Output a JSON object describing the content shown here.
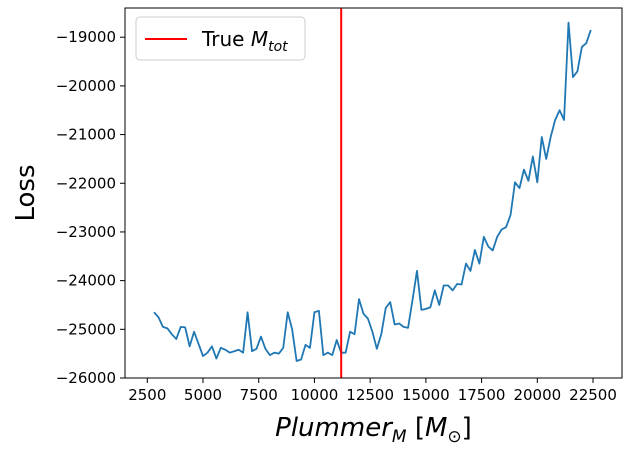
{
  "chart_data": {
    "type": "line",
    "title": "",
    "xlabel": {
      "main": "Plummer",
      "sub": "M",
      "unit_open": " [",
      "unit_var": "M",
      "unit_sub": "⊙",
      "unit_close": "]"
    },
    "ylabel": "Loss",
    "xlim": [
      1500,
      23800
    ],
    "ylim": [
      -26000,
      -18400
    ],
    "xticks": [
      2500,
      5000,
      7500,
      10000,
      12500,
      15000,
      17500,
      20000,
      22500
    ],
    "xtick_labels": [
      "2500",
      "5000",
      "7500",
      "10000",
      "12500",
      "15000",
      "17500",
      "20000",
      "22500"
    ],
    "yticks": [
      -26000,
      -25000,
      -24000,
      -23000,
      -22000,
      -21000,
      -20000,
      -19000
    ],
    "ytick_labels": [
      "−26000",
      "−25000",
      "−24000",
      "−23000",
      "−22000",
      "−21000",
      "−20000",
      "−19000"
    ],
    "grid": false,
    "legend_position": "upper-left",
    "series": [
      {
        "color": "#1f77b4",
        "x": [
          2800,
          3000,
          3200,
          3400,
          3600,
          3800,
          4000,
          4200,
          4400,
          4600,
          4800,
          5000,
          5200,
          5400,
          5600,
          5800,
          6000,
          6200,
          6400,
          6600,
          6800,
          7000,
          7200,
          7400,
          7600,
          7800,
          8000,
          8200,
          8400,
          8600,
          8800,
          9000,
          9200,
          9400,
          9600,
          9800,
          10000,
          10200,
          10400,
          10600,
          10800,
          11000,
          11200,
          11400,
          11600,
          11800,
          12000,
          12200,
          12400,
          12600,
          12800,
          13000,
          13200,
          13400,
          13600,
          13800,
          14000,
          14200,
          14400,
          14600,
          14800,
          15000,
          15200,
          15400,
          15600,
          15800,
          16000,
          16200,
          16400,
          16600,
          16800,
          17000,
          17200,
          17400,
          17600,
          17800,
          18000,
          18200,
          18400,
          18600,
          18800,
          19000,
          19200,
          19400,
          19600,
          19800,
          20000,
          20200,
          20400,
          20600,
          20800,
          21000,
          21200,
          21400,
          21600,
          21800,
          22000,
          22200,
          22400
        ],
        "y": [
          -24650,
          -24750,
          -24950,
          -24980,
          -25100,
          -25200,
          -24950,
          -24960,
          -25350,
          -25050,
          -25300,
          -25550,
          -25480,
          -25350,
          -25600,
          -25380,
          -25420,
          -25480,
          -25450,
          -25420,
          -25480,
          -24650,
          -25450,
          -25400,
          -25150,
          -25400,
          -25530,
          -25480,
          -25500,
          -25380,
          -24650,
          -25000,
          -25650,
          -25620,
          -25320,
          -25380,
          -24650,
          -24620,
          -25530,
          -25480,
          -25530,
          -25220,
          -25480,
          -25480,
          -25050,
          -25100,
          -24380,
          -24680,
          -24780,
          -25050,
          -25400,
          -25100,
          -24560,
          -24440,
          -24900,
          -24880,
          -24950,
          -24970,
          -24400,
          -23800,
          -24600,
          -24580,
          -24550,
          -24200,
          -24500,
          -24100,
          -24100,
          -24200,
          -24070,
          -24080,
          -23650,
          -23800,
          -23370,
          -23650,
          -23100,
          -23300,
          -23380,
          -23100,
          -22950,
          -22900,
          -22650,
          -21980,
          -22100,
          -21720,
          -21950,
          -21450,
          -21980,
          -21050,
          -21500,
          -21050,
          -20700,
          -20500,
          -20700,
          -18700,
          -19820,
          -19700,
          -19200,
          -19120,
          -18850
        ]
      }
    ],
    "vlines": [
      {
        "x": 11200,
        "color": "#ff0000",
        "label_main": "True ",
        "label_var": "M",
        "label_sub": "tot"
      }
    ]
  }
}
